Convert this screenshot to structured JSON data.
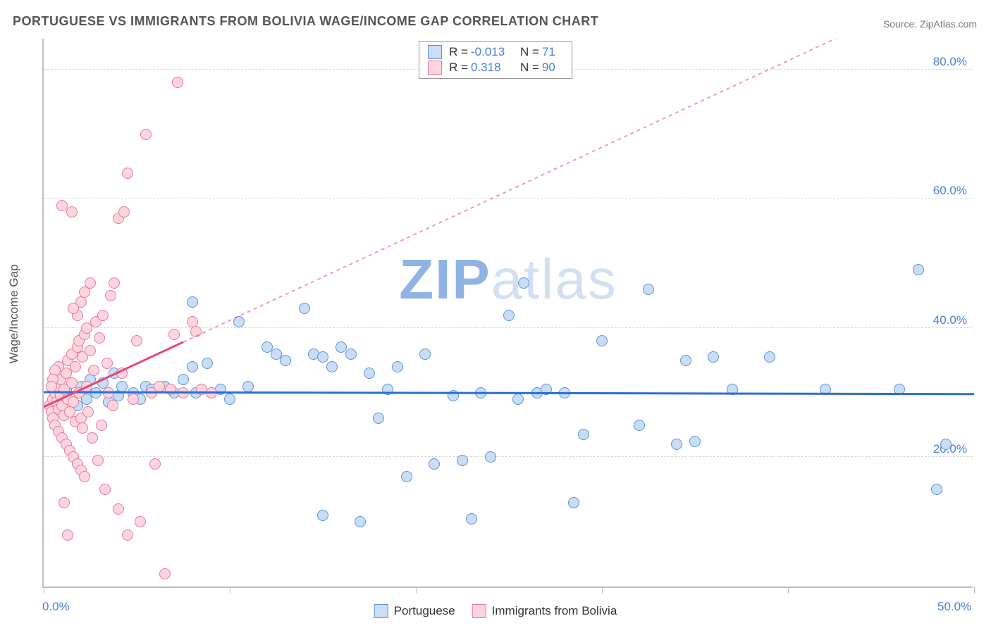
{
  "title": "PORTUGUESE VS IMMIGRANTS FROM BOLIVIA WAGE/INCOME GAP CORRELATION CHART",
  "source": "Source: ZipAtlas.com",
  "ylabel": "Wage/Income Gap",
  "watermark_z": "ZIP",
  "watermark_rest": "atlas",
  "chart": {
    "type": "scatter",
    "xlim": [
      0,
      50
    ],
    "ylim": [
      0,
      85
    ],
    "yticks": [
      20,
      40,
      60,
      80
    ],
    "ytick_labels": [
      "20.0%",
      "40.0%",
      "60.0%",
      "80.0%"
    ],
    "x_tick_positions": [
      0,
      10,
      20,
      30,
      40,
      50
    ],
    "x_start_label": "0.0%",
    "x_end_label": "50.0%",
    "background_color": "#ffffff",
    "grid_color": "#d9d9d9",
    "axis_color": "#bfbfbf",
    "tick_label_color": "#4a7fd6",
    "marker_radius": 8,
    "series": [
      {
        "name": "Portuguese",
        "fill": "#c9ddf5",
        "stroke": "#5c94d6",
        "trend_color": "#2a6fd6",
        "trend_y_at_x0": 30.3,
        "trend_y_at_xmax": 30.0,
        "R_label": "R =",
        "R_value": "-0.013",
        "N_label": "N =",
        "N_value": "71",
        "points": [
          [
            1.2,
            30.5
          ],
          [
            1.8,
            28.0
          ],
          [
            2.0,
            31.0
          ],
          [
            2.3,
            29.0
          ],
          [
            2.5,
            32.0
          ],
          [
            2.8,
            30.0
          ],
          [
            3.2,
            31.5
          ],
          [
            3.5,
            28.5
          ],
          [
            3.8,
            33.0
          ],
          [
            4.0,
            29.5
          ],
          [
            4.2,
            31.0
          ],
          [
            4.8,
            30.0
          ],
          [
            5.2,
            29.0
          ],
          [
            5.5,
            31.0
          ],
          [
            5.8,
            30.5
          ],
          [
            6.5,
            31.0
          ],
          [
            7.0,
            30.0
          ],
          [
            7.5,
            32.0
          ],
          [
            8.0,
            34.0
          ],
          [
            8.0,
            44.0
          ],
          [
            8.2,
            30.0
          ],
          [
            8.8,
            34.5
          ],
          [
            9.5,
            30.5
          ],
          [
            10.0,
            29.0
          ],
          [
            10.5,
            41.0
          ],
          [
            11.0,
            31.0
          ],
          [
            12.0,
            37.0
          ],
          [
            12.5,
            36.0
          ],
          [
            13.0,
            35.0
          ],
          [
            14.0,
            43.0
          ],
          [
            14.5,
            36.0
          ],
          [
            15.0,
            35.5
          ],
          [
            15.0,
            11.0
          ],
          [
            15.5,
            34.0
          ],
          [
            16.0,
            37.0
          ],
          [
            16.5,
            36.0
          ],
          [
            17.0,
            10.0
          ],
          [
            17.5,
            33.0
          ],
          [
            18.0,
            26.0
          ],
          [
            18.5,
            30.5
          ],
          [
            19.0,
            34.0
          ],
          [
            19.5,
            17.0
          ],
          [
            20.5,
            36.0
          ],
          [
            21.0,
            19.0
          ],
          [
            22.0,
            29.5
          ],
          [
            22.5,
            19.5
          ],
          [
            23.0,
            10.5
          ],
          [
            23.5,
            30.0
          ],
          [
            24.0,
            20.0
          ],
          [
            25.0,
            42.0
          ],
          [
            25.5,
            29.0
          ],
          [
            25.8,
            47.0
          ],
          [
            26.5,
            30.0
          ],
          [
            27.0,
            30.5
          ],
          [
            28.0,
            30.0
          ],
          [
            28.5,
            13.0
          ],
          [
            29.0,
            23.5
          ],
          [
            30.0,
            38.0
          ],
          [
            32.0,
            25.0
          ],
          [
            32.5,
            46.0
          ],
          [
            34.0,
            22.0
          ],
          [
            34.5,
            35.0
          ],
          [
            35.0,
            22.5
          ],
          [
            36.0,
            35.5
          ],
          [
            37.0,
            30.5
          ],
          [
            39.0,
            35.5
          ],
          [
            42.0,
            30.5
          ],
          [
            46.0,
            30.5
          ],
          [
            47.0,
            49.0
          ],
          [
            48.0,
            15.0
          ],
          [
            48.5,
            22.0
          ]
        ]
      },
      {
        "name": "Immigrants from Bolivia",
        "fill": "#fcd5de",
        "stroke": "#e67a99",
        "trend_color": "#e3497a",
        "trend_y_at_x0": 28.0,
        "trend_y_at_xmax": 95.0,
        "trend_solid_until_x": 7.5,
        "R_label": "R =",
        "R_value": "0.318",
        "N_label": "N =",
        "N_value": "90",
        "points": [
          [
            0.3,
            28.0
          ],
          [
            0.4,
            27.0
          ],
          [
            0.5,
            29.0
          ],
          [
            0.5,
            26.0
          ],
          [
            0.6,
            30.0
          ],
          [
            0.6,
            25.0
          ],
          [
            0.7,
            28.5
          ],
          [
            0.7,
            31.0
          ],
          [
            0.8,
            27.5
          ],
          [
            0.8,
            24.0
          ],
          [
            0.9,
            29.5
          ],
          [
            0.9,
            32.0
          ],
          [
            1.0,
            28.0
          ],
          [
            1.0,
            23.0
          ],
          [
            1.1,
            30.5
          ],
          [
            1.1,
            26.5
          ],
          [
            1.2,
            33.0
          ],
          [
            1.2,
            22.0
          ],
          [
            1.3,
            29.0
          ],
          [
            1.3,
            35.0
          ],
          [
            1.4,
            27.0
          ],
          [
            1.4,
            21.0
          ],
          [
            1.5,
            31.5
          ],
          [
            1.5,
            36.0
          ],
          [
            1.6,
            28.5
          ],
          [
            1.6,
            20.0
          ],
          [
            1.7,
            34.0
          ],
          [
            1.7,
            25.5
          ],
          [
            1.8,
            37.0
          ],
          [
            1.8,
            19.0
          ],
          [
            1.9,
            30.0
          ],
          [
            1.9,
            38.0
          ],
          [
            2.0,
            26.0
          ],
          [
            2.0,
            18.0
          ],
          [
            2.1,
            35.5
          ],
          [
            2.1,
            24.5
          ],
          [
            2.2,
            39.0
          ],
          [
            2.2,
            17.0
          ],
          [
            2.3,
            31.0
          ],
          [
            2.3,
            40.0
          ],
          [
            2.4,
            27.0
          ],
          [
            2.5,
            36.5
          ],
          [
            2.6,
            23.0
          ],
          [
            2.7,
            33.5
          ],
          [
            2.8,
            41.0
          ],
          [
            2.9,
            19.5
          ],
          [
            3.0,
            38.5
          ],
          [
            3.1,
            25.0
          ],
          [
            3.2,
            42.0
          ],
          [
            3.3,
            15.0
          ],
          [
            3.4,
            34.5
          ],
          [
            3.5,
            30.0
          ],
          [
            3.6,
            45.0
          ],
          [
            3.7,
            28.0
          ],
          [
            3.8,
            47.0
          ],
          [
            4.0,
            12.0
          ],
          [
            4.0,
            57.0
          ],
          [
            4.2,
            33.0
          ],
          [
            4.3,
            58.0
          ],
          [
            4.5,
            8.0
          ],
          [
            4.5,
            64.0
          ],
          [
            4.8,
            29.0
          ],
          [
            5.0,
            38.0
          ],
          [
            5.2,
            10.0
          ],
          [
            5.5,
            70.0
          ],
          [
            5.8,
            30.0
          ],
          [
            6.0,
            19.0
          ],
          [
            6.2,
            31.0
          ],
          [
            6.5,
            2.0
          ],
          [
            6.8,
            30.5
          ],
          [
            7.0,
            39.0
          ],
          [
            7.2,
            78.0
          ],
          [
            7.5,
            30.0
          ],
          [
            8.0,
            41.0
          ],
          [
            8.2,
            39.5
          ],
          [
            8.5,
            30.5
          ],
          [
            9.0,
            30.0
          ],
          [
            1.5,
            58.0
          ],
          [
            1.0,
            59.0
          ],
          [
            0.8,
            34.0
          ],
          [
            0.6,
            33.5
          ],
          [
            0.5,
            32.0
          ],
          [
            0.4,
            31.0
          ],
          [
            2.0,
            44.0
          ],
          [
            2.2,
            45.5
          ],
          [
            2.5,
            47.0
          ],
          [
            1.8,
            42.0
          ],
          [
            1.6,
            43.0
          ],
          [
            1.3,
            8.0
          ],
          [
            1.1,
            13.0
          ]
        ]
      }
    ]
  },
  "stats_box": {
    "position_top": 58,
    "position_left_center": true
  },
  "legend": {
    "items": [
      "Portuguese",
      "Immigrants from Bolivia"
    ]
  }
}
